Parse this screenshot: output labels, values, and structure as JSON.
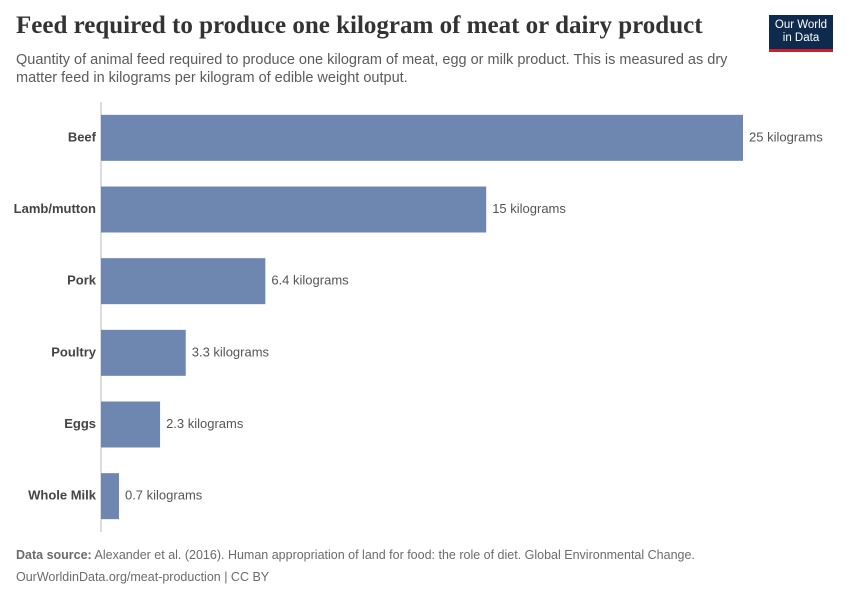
{
  "chart_data": {
    "type": "bar",
    "orientation": "horizontal",
    "title": "Feed required to produce one kilogram of meat or dairy product",
    "subtitle": "Quantity of animal feed required to produce one kilogram of meat, egg or milk product. This is measured as dry matter feed in kilograms per kilogram of edible weight output.",
    "categories": [
      "Beef",
      "Lamb/mutton",
      "Pork",
      "Poultry",
      "Eggs",
      "Whole Milk"
    ],
    "values": [
      25,
      15,
      6.4,
      3.3,
      2.3,
      0.7
    ],
    "value_labels": [
      "25 kilograms",
      "15 kilograms",
      "6.4 kilograms",
      "3.3 kilograms",
      "2.3 kilograms",
      "0.7 kilograms"
    ],
    "color": "#6d87b1"
  },
  "footer": {
    "source_label": "Data source:",
    "source": "Alexander et al. (2016). Human appropriation of land for food: the role of diet. Global Environmental Change.",
    "url": "OurWorldinData.org/meat-production | CC BY"
  },
  "logo": [
    "Our World",
    "in Data"
  ]
}
